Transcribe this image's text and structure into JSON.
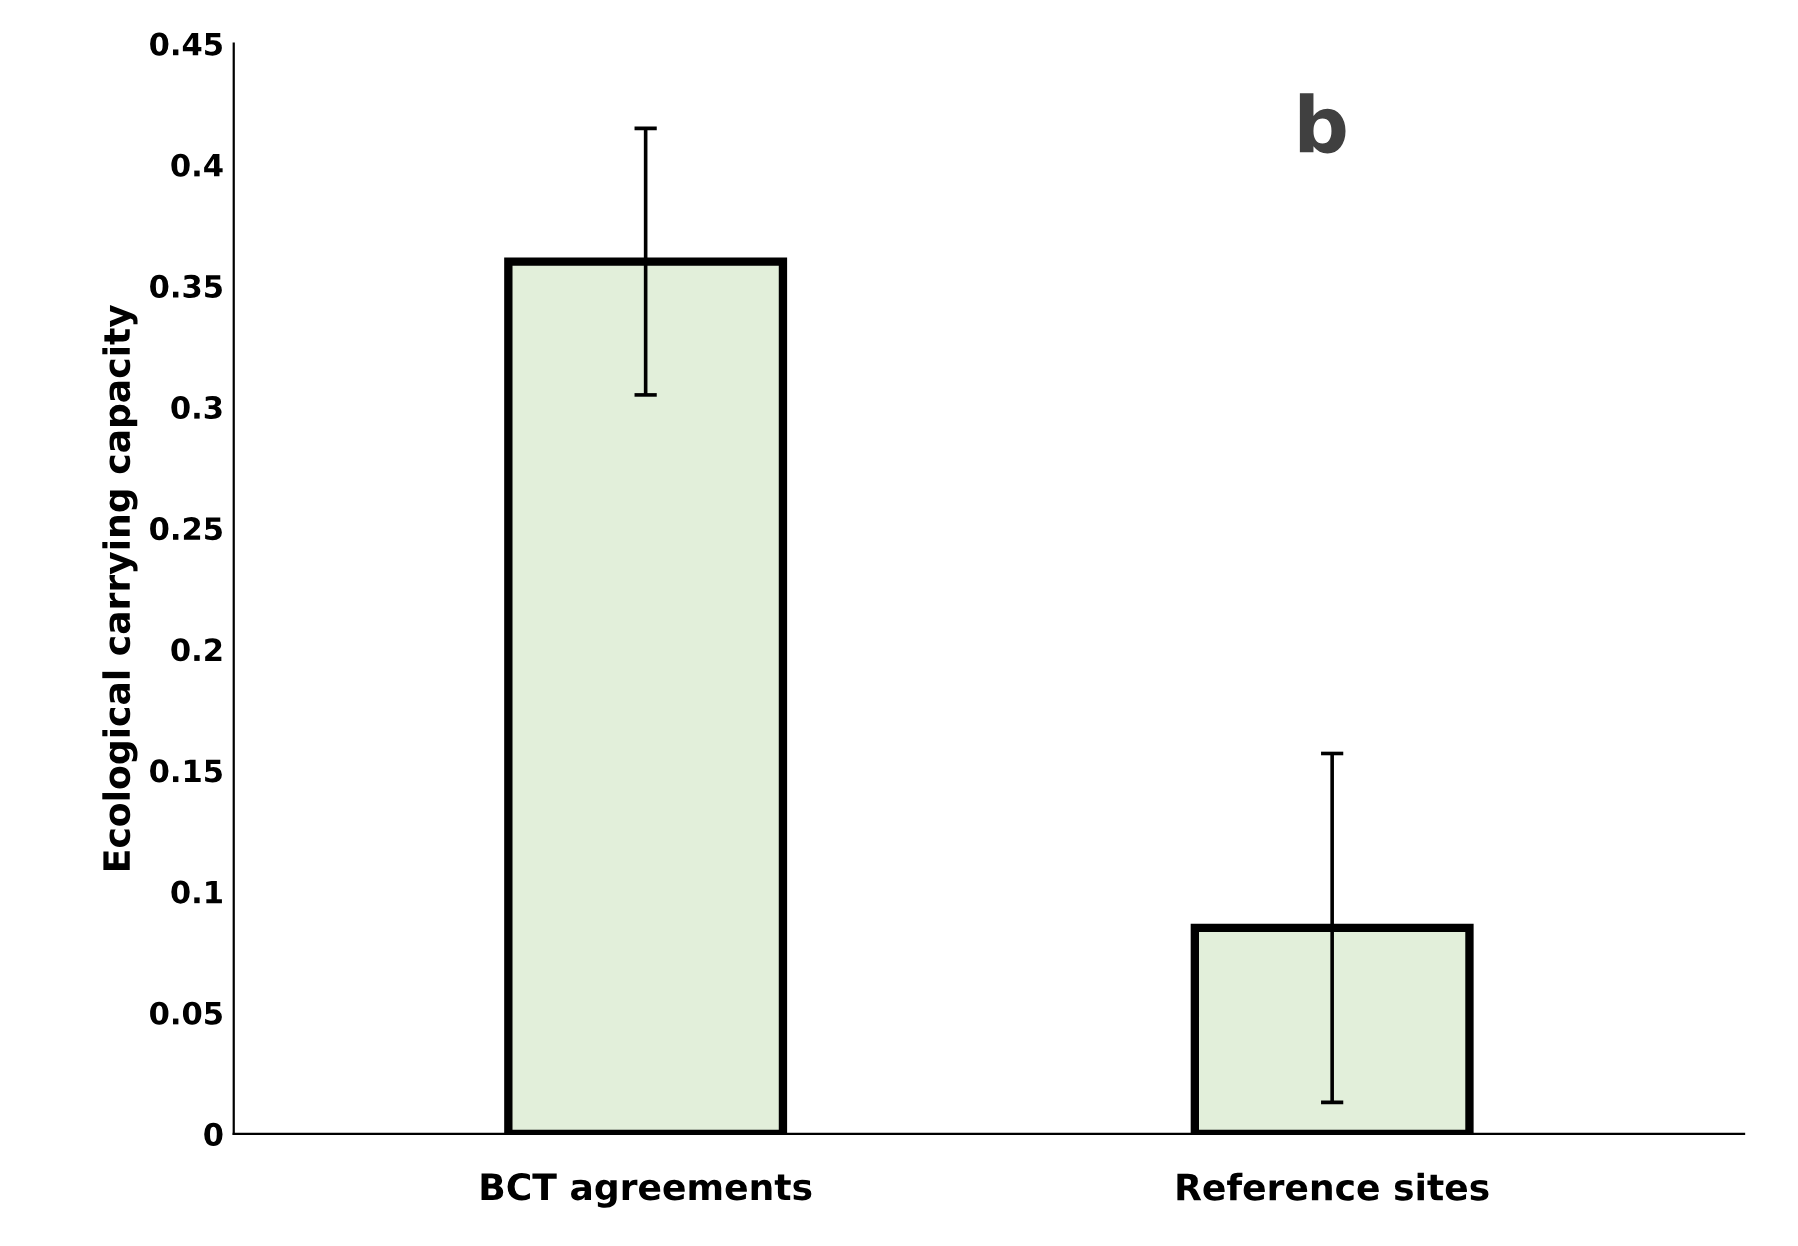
{
  "chart_data": {
    "type": "bar",
    "ylabel": "Ecological carrying capacity",
    "categories": [
      "BCT agreements",
      "Reference sites"
    ],
    "values": [
      0.36,
      0.085
    ],
    "errors": [
      0.055,
      0.072
    ],
    "color": "#e2efda",
    "ylim": [
      0,
      0.45
    ],
    "yticks": [
      0,
      0.05,
      0.1,
      0.15,
      0.2,
      0.25,
      0.3,
      0.35,
      0.4,
      0.45
    ],
    "grid": false,
    "annotations": [
      "b"
    ]
  }
}
